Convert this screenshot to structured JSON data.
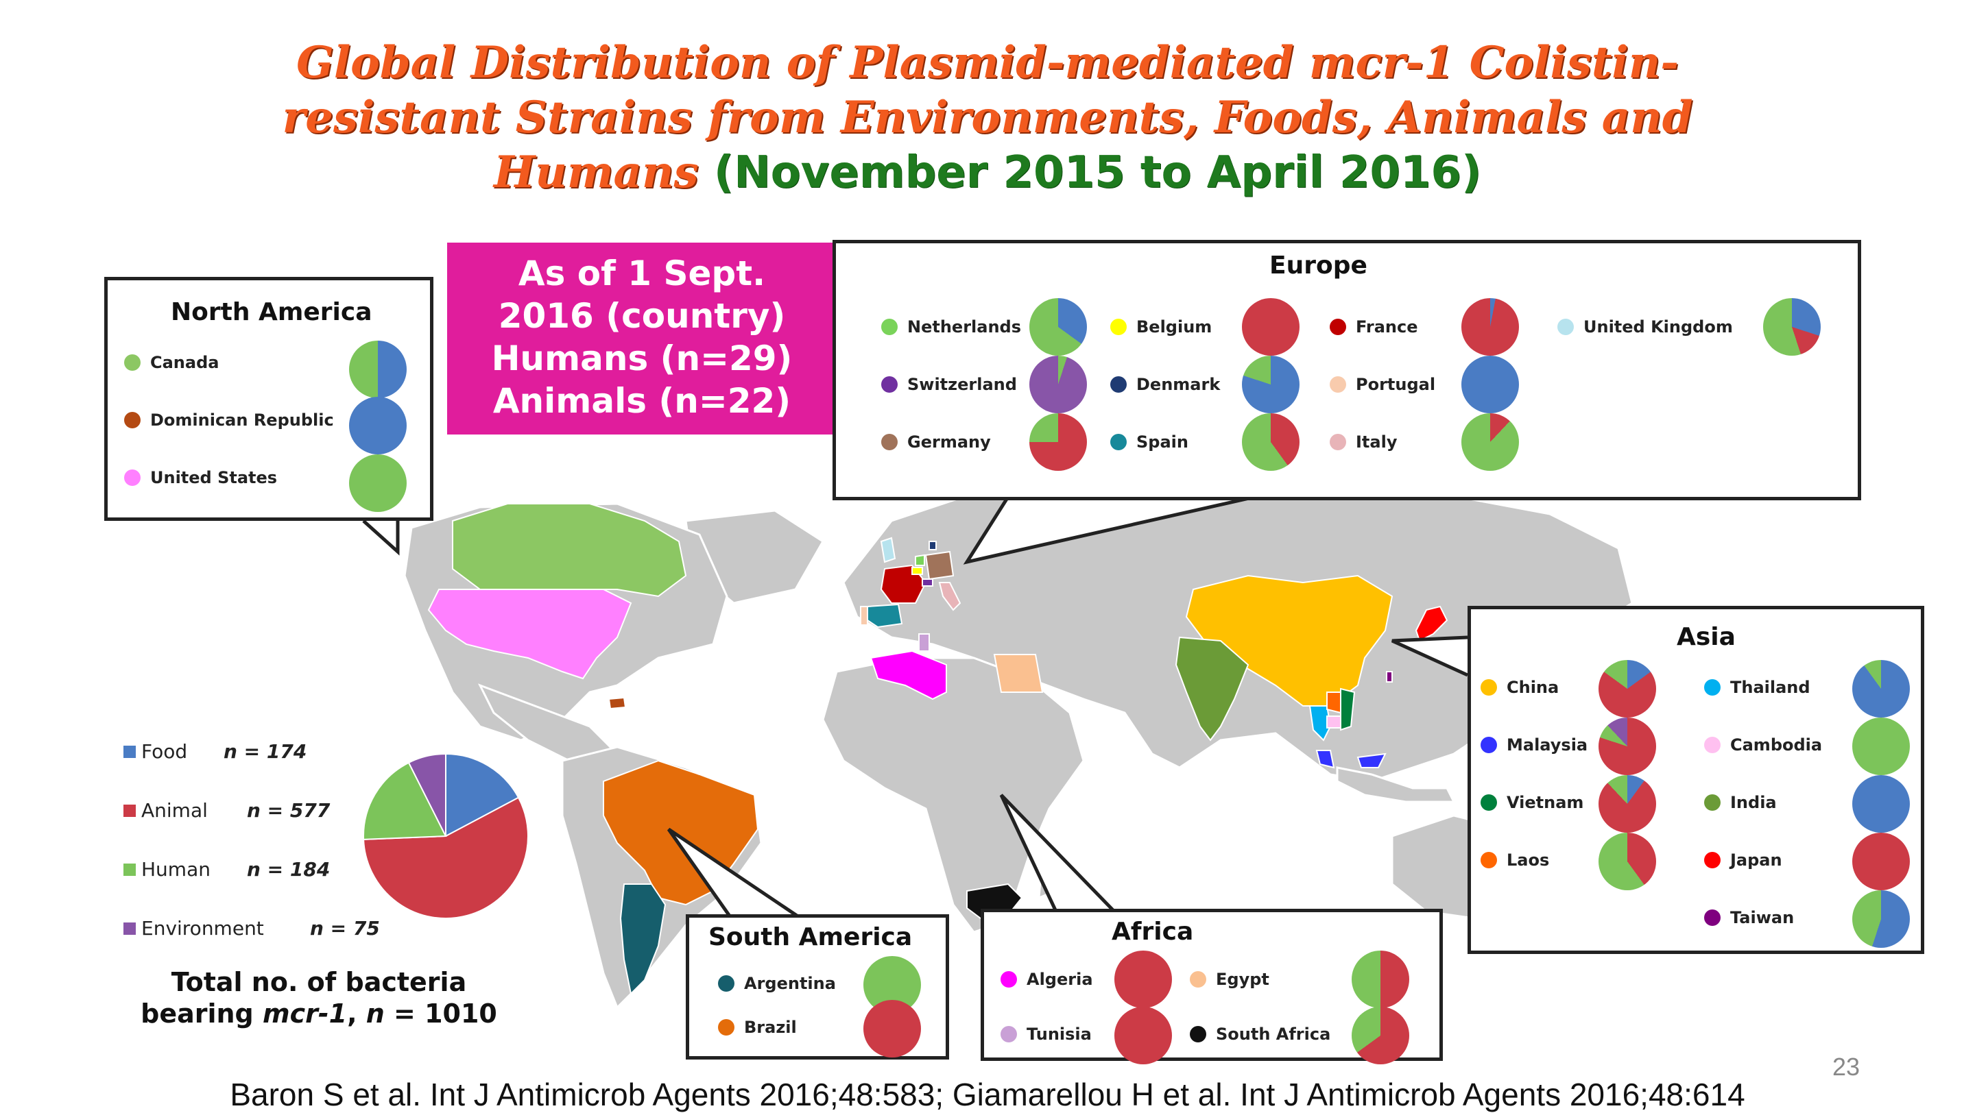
{
  "title": {
    "line1": "Global Distribution of Plasmid-mediated mcr-1 Colistin-",
    "line2": "resistant Strains from Environments, Foods, Animals and",
    "line3_orange": "Humans",
    "line3_green": "(November 2015 to April 2016)"
  },
  "banner": {
    "line1": "As of 1 Sept.",
    "line2": "2016 (country)",
    "line3": "Humans (n=29)",
    "line4": "Animals (n=22)"
  },
  "colors": {
    "food": "#4a7cc4",
    "animal": "#cc3b46",
    "human": "#7cc45a",
    "environment": "#8855a8"
  },
  "regions": {
    "north_america": {
      "title": "North America",
      "countries": [
        {
          "name": "Canada",
          "color": "#8cc763",
          "pie": [
            50,
            0,
            50,
            0
          ]
        },
        {
          "name": "Dominican Republic",
          "color": "#b44a13",
          "pie": [
            100,
            0,
            0,
            0
          ]
        },
        {
          "name": "United States",
          "color": "#ff80ff",
          "pie": [
            0,
            0,
            100,
            0
          ]
        }
      ]
    },
    "europe": {
      "title": "Europe",
      "countries": [
        {
          "name": "Netherlands",
          "color": "#7ad35a",
          "pie": [
            35,
            0,
            65,
            0
          ]
        },
        {
          "name": "Belgium",
          "color": "#ffff00",
          "pie": [
            0,
            100,
            0,
            0
          ]
        },
        {
          "name": "France",
          "color": "#c00000",
          "pie": [
            3,
            97,
            0,
            0
          ]
        },
        {
          "name": "United Kingdom",
          "color": "#b7e3ee",
          "pie": [
            30,
            15,
            55,
            0
          ]
        },
        {
          "name": "Switzerland",
          "color": "#7030a0",
          "pie": [
            0,
            0,
            5,
            95
          ]
        },
        {
          "name": "Denmark",
          "color": "#1f3b73",
          "pie": [
            80,
            0,
            20,
            0
          ]
        },
        {
          "name": "Portugal",
          "color": "#f8cbad",
          "pie": [
            100,
            0,
            0,
            0
          ]
        },
        {
          "name": "Germany",
          "color": "#a0735a",
          "pie": [
            0,
            75,
            25,
            0
          ]
        },
        {
          "name": "Spain",
          "color": "#17899a",
          "pie": [
            0,
            40,
            60,
            0
          ]
        },
        {
          "name": "Italy",
          "color": "#e8b4b8",
          "pie": [
            0,
            12,
            88,
            0
          ]
        }
      ]
    },
    "asia": {
      "title": "Asia",
      "countries": [
        {
          "name": "China",
          "color": "#ffc000",
          "pie": [
            15,
            70,
            15,
            0
          ]
        },
        {
          "name": "Thailand",
          "color": "#00b0f0",
          "pie": [
            90,
            0,
            10,
            0
          ]
        },
        {
          "name": "Malaysia",
          "color": "#3333ff",
          "pie": [
            0,
            80,
            8,
            12
          ]
        },
        {
          "name": "Cambodia",
          "color": "#ffc0f0",
          "pie": [
            0,
            0,
            100,
            0
          ]
        },
        {
          "name": "Vietnam",
          "color": "#00803c",
          "pie": [
            10,
            78,
            12,
            0
          ]
        },
        {
          "name": "India",
          "color": "#6b9b37",
          "pie": [
            100,
            0,
            0,
            0
          ]
        },
        {
          "name": "Laos",
          "color": "#ff6600",
          "pie": [
            0,
            40,
            60,
            0
          ]
        },
        {
          "name": "Japan",
          "color": "#ff0000",
          "pie": [
            0,
            100,
            0,
            0
          ]
        },
        {
          "name": "Taiwan",
          "color": "#7f007f",
          "pie": [
            55,
            0,
            45,
            0
          ]
        }
      ]
    },
    "south_america": {
      "title": "South America",
      "countries": [
        {
          "name": "Argentina",
          "color": "#165e6c",
          "pie": [
            0,
            0,
            100,
            0
          ]
        },
        {
          "name": "Brazil",
          "color": "#e46c0a",
          "pie": [
            0,
            100,
            0,
            0
          ]
        }
      ]
    },
    "africa": {
      "title": "Africa",
      "countries": [
        {
          "name": "Algeria",
          "color": "#ff00ff",
          "pie": [
            0,
            100,
            0,
            0
          ]
        },
        {
          "name": "Egypt",
          "color": "#fac090",
          "pie": [
            0,
            50,
            50,
            0
          ]
        },
        {
          "name": "Tunisia",
          "color": "#c9a0d6",
          "pie": [
            0,
            100,
            0,
            0
          ]
        },
        {
          "name": "South Africa",
          "color": "#111111",
          "pie": [
            0,
            65,
            35,
            0
          ]
        }
      ]
    }
  },
  "legend": {
    "items": [
      {
        "name": "Food",
        "n": "n = 174",
        "value": 174
      },
      {
        "name": "Animal",
        "n": "n = 577",
        "value": 577
      },
      {
        "name": "Human",
        "n": "n = 184",
        "value": 184
      },
      {
        "name": "Environment",
        "n": "n = 75",
        "value": 75
      }
    ],
    "total_line1": "Total no. of bacteria",
    "total_line2_prefix": "bearing ",
    "total_line2_italic": "mcr-1",
    "total_line2_suffix": ", ",
    "total_line2_n": "n",
    "total_line2_end": " = 1010"
  },
  "page_number": "23",
  "citation": "Baron S et al. Int J Antimicrob Agents 2016;48:583; Giamarellou H et al. Int J Antimicrob Agents 2016;48:614"
}
